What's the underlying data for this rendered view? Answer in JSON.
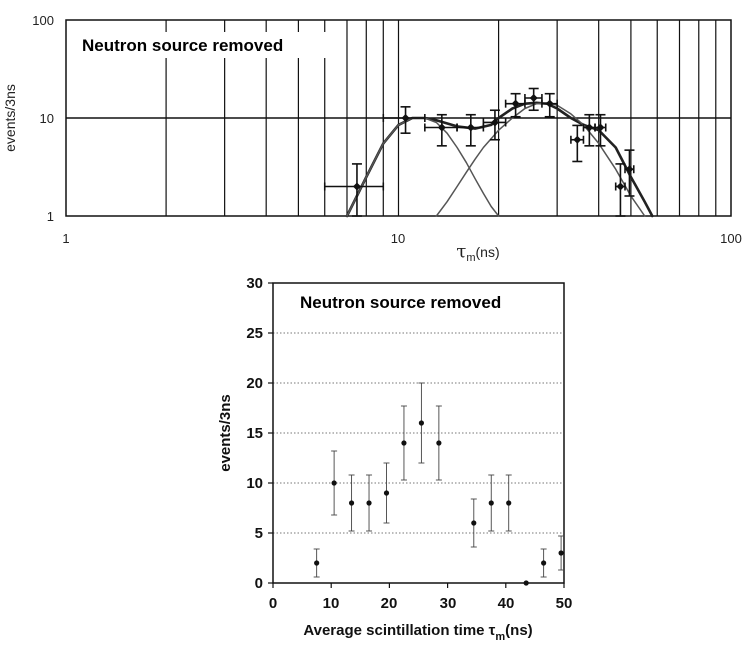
{
  "chart_data": [
    {
      "type": "scatter",
      "annotation": "Neutron source removed",
      "xlabel_symbol": "τ",
      "xlabel_sub": "m",
      "xlabel_unit": "(ns)",
      "ylabel": "events/3ns",
      "xscale": "log",
      "yscale": "log",
      "xlim": [
        1,
        100
      ],
      "ylim": [
        1,
        100
      ],
      "x_ticks": [
        "1",
        "10",
        "100"
      ],
      "y_ticks": [
        "1",
        "10",
        "100"
      ],
      "grid": true,
      "series": [
        {
          "points": [
            {
              "x": 7.5,
              "y": 2,
              "xerr": 1.5,
              "yerr": [
                1,
                1.4
              ]
            },
            {
              "x": 10.5,
              "y": 10,
              "xerr": 1.5,
              "yerr": [
                3,
                3
              ]
            },
            {
              "x": 13.5,
              "y": 8,
              "xerr": 1.5,
              "yerr": [
                2.8,
                2.8
              ]
            },
            {
              "x": 16.5,
              "y": 8,
              "xerr": 1.5,
              "yerr": [
                2.8,
                2.8
              ]
            },
            {
              "x": 19.5,
              "y": 9,
              "xerr": 1.5,
              "yerr": [
                3,
                3
              ]
            },
            {
              "x": 22.5,
              "y": 14,
              "xerr": 1.5,
              "yerr": [
                3.7,
                3.7
              ]
            },
            {
              "x": 25.5,
              "y": 16,
              "xerr": 1.5,
              "yerr": [
                4,
                4
              ]
            },
            {
              "x": 28.5,
              "y": 14,
              "xerr": 1.5,
              "yerr": [
                3.7,
                3.7
              ]
            },
            {
              "x": 34.5,
              "y": 6,
              "xerr": 1.5,
              "yerr": [
                2.4,
                2.4
              ]
            },
            {
              "x": 37.5,
              "y": 8,
              "xerr": 1.5,
              "yerr": [
                2.8,
                2.8
              ]
            },
            {
              "x": 40.5,
              "y": 8,
              "xerr": 1.5,
              "yerr": [
                2.8,
                2.8
              ]
            },
            {
              "x": 46.5,
              "y": 2,
              "xerr": 1.5,
              "yerr": [
                1,
                1.4
              ]
            },
            {
              "x": 49.5,
              "y": 3,
              "xerr": 1.5,
              "yerr": [
                1.4,
                1.7
              ]
            }
          ]
        }
      ],
      "curves": [
        {
          "x": [
            7,
            8,
            9,
            10,
            11,
            12,
            13,
            15,
            17,
            19,
            20,
            22,
            24,
            26,
            28,
            30,
            33,
            36,
            40,
            45,
            50,
            55,
            58
          ],
          "y": [
            1,
            2.5,
            5.5,
            8.5,
            10,
            10,
            9.5,
            8.2,
            7.8,
            8.5,
            10,
            12.5,
            14,
            14.3,
            14,
            12.5,
            10,
            8.5,
            7.5,
            5,
            2.5,
            1.4,
            1
          ]
        },
        {
          "x": [
            7,
            8,
            9,
            10,
            11,
            12,
            13,
            14,
            15,
            16,
            17,
            18,
            19,
            20
          ],
          "y": [
            1,
            2.5,
            5.5,
            8.5,
            10,
            10,
            9,
            7,
            5,
            3.5,
            2.4,
            1.7,
            1.25,
            1
          ]
        },
        {
          "x": [
            13,
            14,
            15,
            16,
            17,
            18,
            20,
            22,
            24,
            26,
            28,
            30,
            33,
            36,
            40,
            45,
            50,
            55
          ],
          "y": [
            1,
            1.4,
            2,
            2.8,
            3.8,
            5,
            7.5,
            10,
            12.5,
            14,
            14.3,
            13.5,
            11,
            8.5,
            5.5,
            3,
            1.6,
            1
          ]
        }
      ]
    },
    {
      "type": "scatter",
      "annotation": "Neutron source removed",
      "xlabel_main": "Average scintillation time τ",
      "xlabel_sub": "m",
      "xlabel_unit": "(ns)",
      "ylabel": "events/3ns",
      "xlim": [
        0,
        50
      ],
      "ylim": [
        0,
        30
      ],
      "x_ticks": [
        "0",
        "10",
        "20",
        "30",
        "40",
        "50"
      ],
      "y_ticks": [
        "0",
        "5",
        "10",
        "15",
        "20",
        "25",
        "30"
      ],
      "grid": "horizontal dotted",
      "series": [
        {
          "points": [
            {
              "x": 7.5,
              "y": 2,
              "yerr": [
                1.4,
                1.4
              ]
            },
            {
              "x": 10.5,
              "y": 10,
              "yerr": [
                3.2,
                3.2
              ]
            },
            {
              "x": 13.5,
              "y": 8,
              "yerr": [
                2.8,
                2.8
              ]
            },
            {
              "x": 16.5,
              "y": 8,
              "yerr": [
                2.8,
                2.8
              ]
            },
            {
              "x": 19.5,
              "y": 9,
              "yerr": [
                3,
                3
              ]
            },
            {
              "x": 22.5,
              "y": 14,
              "yerr": [
                3.7,
                3.7
              ]
            },
            {
              "x": 25.5,
              "y": 16,
              "yerr": [
                4,
                4
              ]
            },
            {
              "x": 28.5,
              "y": 14,
              "yerr": [
                3.7,
                3.7
              ]
            },
            {
              "x": 34.5,
              "y": 6,
              "yerr": [
                2.4,
                2.4
              ]
            },
            {
              "x": 37.5,
              "y": 8,
              "yerr": [
                2.8,
                2.8
              ]
            },
            {
              "x": 40.5,
              "y": 8,
              "yerr": [
                2.8,
                2.8
              ]
            },
            {
              "x": 43.5,
              "y": 0,
              "yerr": [
                0,
                0
              ]
            },
            {
              "x": 46.5,
              "y": 2,
              "yerr": [
                1.4,
                1.4
              ]
            },
            {
              "x": 49.5,
              "y": 3,
              "yerr": [
                1.7,
                1.7
              ]
            }
          ]
        }
      ]
    }
  ]
}
